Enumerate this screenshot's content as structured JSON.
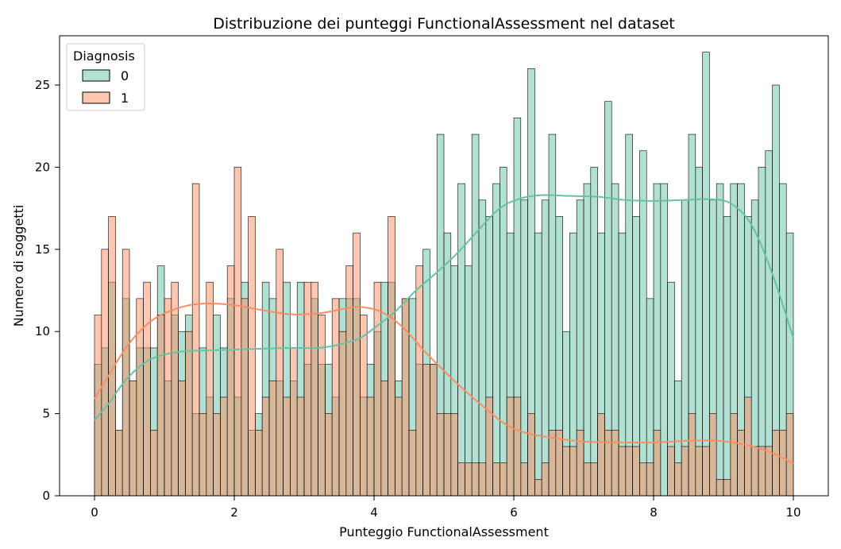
{
  "chart_data": {
    "type": "bar",
    "subtype": "overlapping-histogram-with-kde",
    "title": "Distribuzione dei punteggi FunctionalAssessment nel dataset",
    "xlabel": "Punteggio FunctionalAssessment",
    "ylabel": "Numero di soggetti",
    "xlim": [
      -0.5,
      10.5
    ],
    "ylim": [
      0,
      28
    ],
    "xticks": [
      0,
      2,
      4,
      6,
      8,
      10
    ],
    "yticks": [
      0,
      5,
      10,
      15,
      20,
      25
    ],
    "bins": 100,
    "bin_width": 0.1,
    "legend": {
      "title": "Diagnosis",
      "position": "top-left",
      "entries": [
        "0",
        "1"
      ]
    },
    "grid": false,
    "series": [
      {
        "name": "0",
        "color": "#66c2a5",
        "fill_alpha": 0.5,
        "values": [
          8,
          9,
          13,
          4,
          12,
          7,
          9,
          9,
          9,
          14,
          7,
          11,
          10,
          11,
          5,
          9,
          6,
          11,
          9,
          12,
          6,
          13,
          4,
          5,
          13,
          12,
          7,
          13,
          7,
          13,
          8,
          12,
          8,
          8,
          6,
          12,
          12,
          12,
          6,
          8,
          10,
          13,
          13,
          7,
          12,
          12,
          8,
          15,
          8,
          22,
          16,
          14,
          19,
          14,
          22,
          18,
          17,
          19,
          20,
          16,
          23,
          18,
          26,
          16,
          18,
          22,
          17,
          10,
          16,
          18,
          19,
          20,
          16,
          24,
          19,
          16,
          22,
          17,
          21,
          12,
          19,
          19,
          13,
          7,
          18,
          22,
          20,
          27,
          18,
          19,
          17,
          19,
          19,
          17,
          18,
          20,
          21,
          25,
          19,
          16
        ],
        "kde": [
          [
            0,
            4.6
          ],
          [
            0.2,
            5.6
          ],
          [
            0.4,
            6.8
          ],
          [
            0.6,
            7.7
          ],
          [
            0.8,
            8.3
          ],
          [
            1.0,
            8.6
          ],
          [
            1.3,
            8.8
          ],
          [
            1.6,
            8.85
          ],
          [
            2.0,
            8.9
          ],
          [
            2.4,
            8.95
          ],
          [
            2.8,
            9.0
          ],
          [
            3.2,
            9.0
          ],
          [
            3.5,
            9.2
          ],
          [
            3.8,
            9.6
          ],
          [
            4.0,
            10.2
          ],
          [
            4.3,
            11.2
          ],
          [
            4.6,
            12.5
          ],
          [
            4.9,
            13.6
          ],
          [
            5.2,
            14.8
          ],
          [
            5.5,
            16.2
          ],
          [
            5.8,
            17.5
          ],
          [
            6.1,
            18.1
          ],
          [
            6.4,
            18.3
          ],
          [
            6.8,
            18.25
          ],
          [
            7.2,
            18.2
          ],
          [
            7.6,
            18.0
          ],
          [
            8.0,
            17.95
          ],
          [
            8.4,
            18.0
          ],
          [
            8.8,
            18.05
          ],
          [
            9.1,
            17.8
          ],
          [
            9.4,
            16.5
          ],
          [
            9.7,
            13.5
          ],
          [
            10.0,
            9.6
          ]
        ]
      },
      {
        "name": "1",
        "color": "#fc8d62",
        "fill_alpha": 0.5,
        "values": [
          11,
          15,
          17,
          4,
          15,
          7,
          12,
          13,
          4,
          11,
          12,
          13,
          7,
          10,
          19,
          5,
          13,
          5,
          6,
          14,
          20,
          12,
          17,
          4,
          6,
          7,
          15,
          6,
          9,
          6,
          13,
          13,
          11,
          5,
          12,
          10,
          14,
          16,
          11,
          6,
          13,
          7,
          17,
          6,
          12,
          4,
          14,
          8,
          8,
          5,
          5,
          5,
          2,
          2,
          2,
          2,
          6,
          2,
          2,
          6,
          6,
          2,
          5,
          1,
          2,
          4,
          4,
          3,
          3,
          4,
          2,
          2,
          5,
          4,
          4,
          3,
          3,
          3,
          2,
          2,
          4,
          0,
          3,
          2,
          3,
          5,
          3,
          3,
          5,
          1,
          1,
          5,
          4,
          6,
          3,
          3,
          3,
          4,
          4,
          5
        ],
        "kde": [
          [
            0,
            5.9
          ],
          [
            0.2,
            7.3
          ],
          [
            0.4,
            8.7
          ],
          [
            0.6,
            9.8
          ],
          [
            0.8,
            10.6
          ],
          [
            1.0,
            11.1
          ],
          [
            1.3,
            11.55
          ],
          [
            1.6,
            11.7
          ],
          [
            2.0,
            11.6
          ],
          [
            2.4,
            11.3
          ],
          [
            2.8,
            11.05
          ],
          [
            3.2,
            11.1
          ],
          [
            3.6,
            11.4
          ],
          [
            3.8,
            11.5
          ],
          [
            4.1,
            11.2
          ],
          [
            4.4,
            10.3
          ],
          [
            4.7,
            8.9
          ],
          [
            5.0,
            7.6
          ],
          [
            5.3,
            6.4
          ],
          [
            5.6,
            5.3
          ],
          [
            5.9,
            4.3
          ],
          [
            6.2,
            3.8
          ],
          [
            6.6,
            3.5
          ],
          [
            7.0,
            3.3
          ],
          [
            7.5,
            3.25
          ],
          [
            8.0,
            3.25
          ],
          [
            8.5,
            3.35
          ],
          [
            8.9,
            3.35
          ],
          [
            9.2,
            3.2
          ],
          [
            9.5,
            2.9
          ],
          [
            9.8,
            2.4
          ],
          [
            10.0,
            1.95
          ]
        ]
      }
    ]
  }
}
